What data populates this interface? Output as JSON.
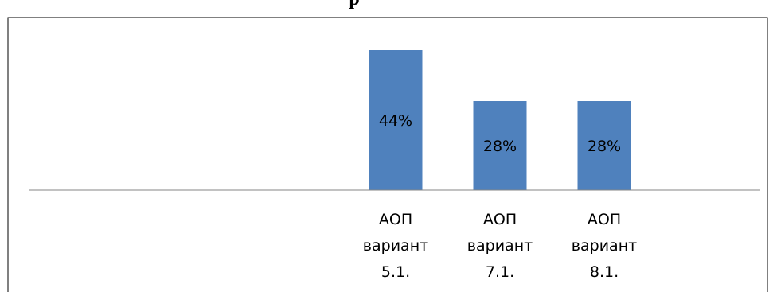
{
  "chart_data": {
    "type": "bar",
    "title": "р",
    "categories": [
      [
        "АОП",
        "вариант",
        "5.1."
      ],
      [
        "АОП",
        "вариант",
        "7.1."
      ],
      [
        "АОП",
        "вариант",
        "8.1."
      ]
    ],
    "values": [
      44,
      28,
      28
    ],
    "data_labels": [
      "44%",
      "28%",
      "28%"
    ],
    "bar_color": "#4F81BD",
    "axis_color": "#868686",
    "border_color": "#000000",
    "ylim": [
      0,
      50
    ],
    "grid": false,
    "legend": "none"
  }
}
